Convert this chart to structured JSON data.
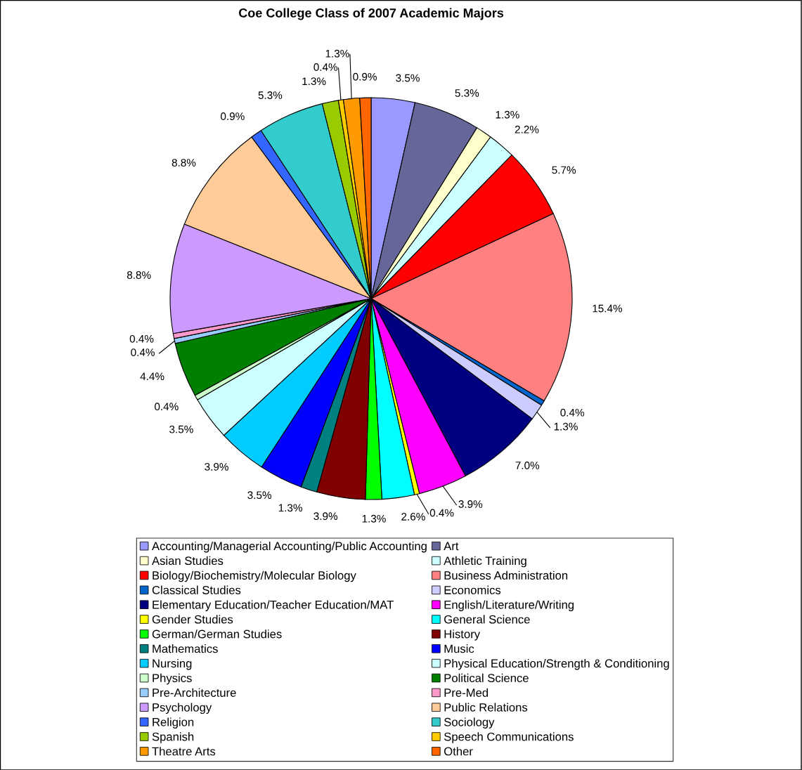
{
  "chart_data": {
    "type": "pie",
    "title": "Coe College Class of 2007 Academic Majors",
    "legend": "bottom",
    "categories": [
      "Accounting/Managerial Accounting/Public Accounting",
      "Art",
      "Asian Studies",
      "Athletic Training",
      "Biology/Biochemistry/Molecular Biology",
      "Business Administration",
      "Classical Studies",
      "Economics",
      "Elementary Education/Teacher Education/MAT",
      "English/Literature/Writing",
      "Gender Studies",
      "General Science",
      "German/German Studies",
      "History",
      "Mathematics",
      "Music",
      "Nursing",
      "Physical Education/Strength & Conditioning",
      "Physics",
      "Political Science",
      "Pre-Architecture",
      "Pre-Med",
      "Psychology",
      "Public Relations",
      "Religion",
      "Sociology",
      "Spanish",
      "Speech Communications",
      "Theatre Arts",
      "Other"
    ],
    "values": [
      3.5,
      5.3,
      1.3,
      2.2,
      5.7,
      15.4,
      0.4,
      1.3,
      7.0,
      3.9,
      0.4,
      2.6,
      1.3,
      3.9,
      1.3,
      3.5,
      3.9,
      3.5,
      0.4,
      4.4,
      0.4,
      0.4,
      8.8,
      8.8,
      0.9,
      5.3,
      1.3,
      0.4,
      1.3,
      0.9
    ],
    "value_labels": [
      "3.5%",
      "5.3%",
      "1.3%",
      "2.2%",
      "5.7%",
      "15.4%",
      "0.4%",
      "1.3%",
      "7.0%",
      "3.9%",
      "0.4%",
      "2.6%",
      "1.3%",
      "3.9%",
      "1.3%",
      "3.5%",
      "3.9%",
      "3.5%",
      "0.4%",
      "4.4%",
      "0.4%",
      "0.4%",
      "8.8%",
      "8.8%",
      "0.9%",
      "5.3%",
      "1.3%",
      "0.4%",
      "1.3%",
      "0.9%"
    ],
    "colors": [
      "#9999ff",
      "#666699",
      "#ffffcc",
      "#ccffff",
      "#ff0000",
      "#ff8080",
      "#0066cc",
      "#ccccff",
      "#000080",
      "#ff00ff",
      "#ffff00",
      "#00ffff",
      "#00ff00",
      "#800000",
      "#008080",
      "#0000ff",
      "#00ccff",
      "#ccffff",
      "#ccffcc",
      "#008000",
      "#99ccff",
      "#ff99cc",
      "#cc99ff",
      "#ffcc99",
      "#3366ff",
      "#33cccc",
      "#99cc00",
      "#ffcc00",
      "#ff9900",
      "#ff6600"
    ]
  }
}
